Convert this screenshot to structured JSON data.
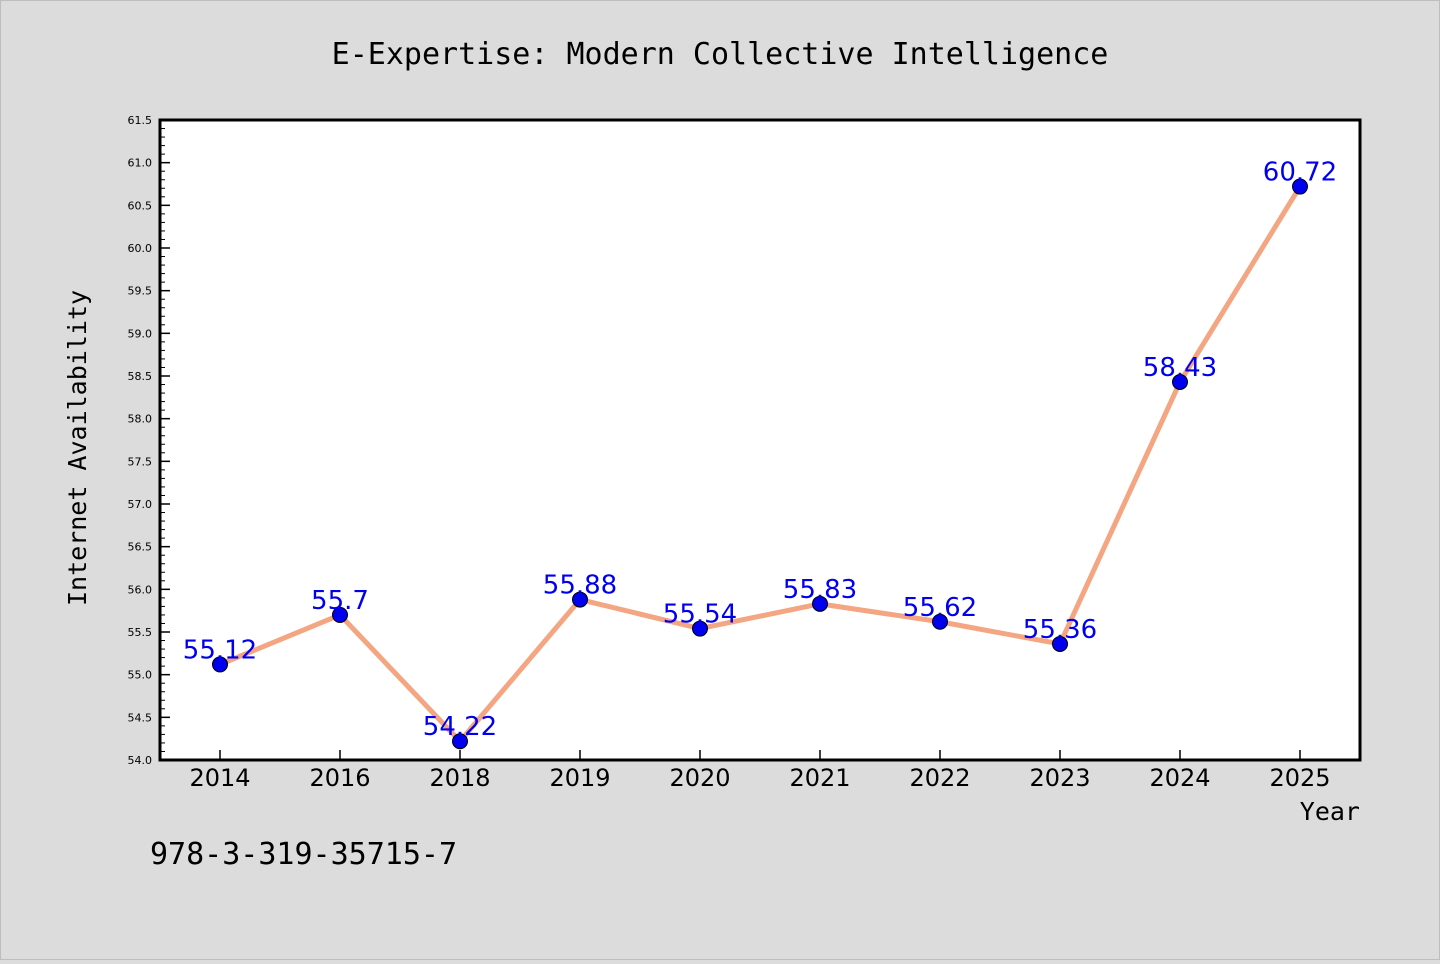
{
  "page": {
    "background": "#dcdcdc"
  },
  "footer": {
    "isbn": "978-3-319-35715-7"
  },
  "chart_data": {
    "type": "line",
    "title": "E-Expertise: Modern Collective Intelligence",
    "xlabel": "Year",
    "ylabel": "Internet Availability",
    "categories": [
      "2014",
      "2016",
      "2018",
      "2019",
      "2020",
      "2021",
      "2022",
      "2023",
      "2024",
      "2025"
    ],
    "series": [
      {
        "values": [
          55.12,
          55.7,
          54.22,
          55.88,
          55.54,
          55.83,
          55.62,
          55.36,
          58.43,
          60.72
        ],
        "data_labels": [
          "55.12",
          "55.7",
          "54.22",
          "55.88",
          "55.54",
          "55.83",
          "55.62",
          "55.36",
          "58.43",
          "60.72"
        ],
        "line_color": "#f4a582",
        "marker_color": "#0000ee"
      }
    ],
    "ylim": [
      54.0,
      61.5
    ],
    "yticks": [
      "54.0",
      "54.5",
      "55.0",
      "55.5",
      "56.0",
      "56.5",
      "57.0",
      "57.5",
      "58.0",
      "58.5",
      "59.0",
      "59.5",
      "60.0",
      "60.5",
      "61.0",
      "61.5"
    ],
    "grid": false,
    "label_color": "#0000ee",
    "plot_background": "#ffffff"
  }
}
